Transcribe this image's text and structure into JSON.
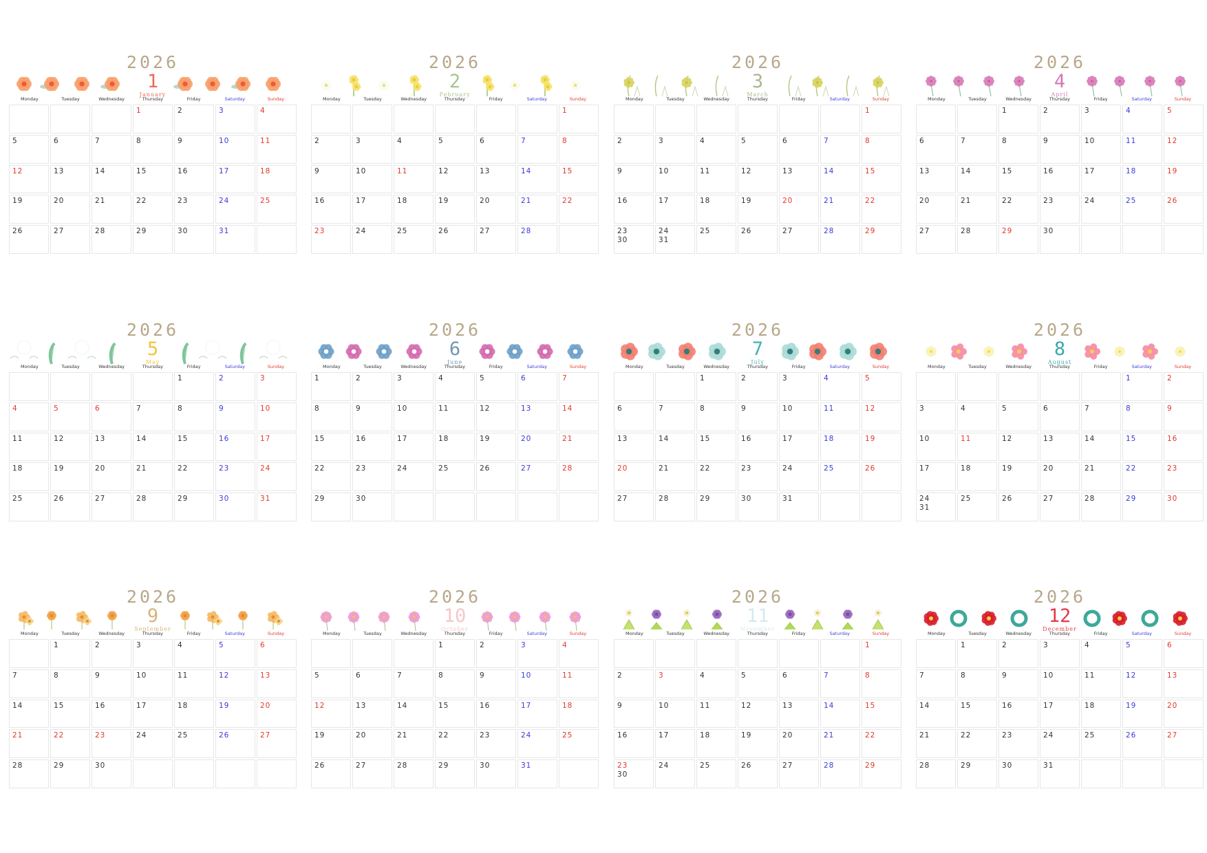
{
  "year": "2026",
  "weekdays": [
    "Monday",
    "Tuesday",
    "Wednesday",
    "Thursday",
    "Friday",
    "Saturday",
    "Sunday"
  ],
  "colors": {
    "text": "#333333",
    "saturday": "#3a3ad8",
    "holiday": "#e2382b",
    "year": "#b8a78a"
  },
  "months": [
    {
      "num": "1",
      "name": "January",
      "color": "#ef6a55",
      "flower": "poppy-flower-icon",
      "cells": [
        [],
        [],
        [],
        [
          "1"
        ],
        [
          "2"
        ],
        [
          "3"
        ],
        [
          "4"
        ],
        [
          "5"
        ],
        [
          "6"
        ],
        [
          "7"
        ],
        [
          "8"
        ],
        [
          "9"
        ],
        [
          "10"
        ],
        [
          "11"
        ],
        [
          "12"
        ],
        [
          "13"
        ],
        [
          "14"
        ],
        [
          "15"
        ],
        [
          "16"
        ],
        [
          "17"
        ],
        [
          "18"
        ],
        [
          "19"
        ],
        [
          "20"
        ],
        [
          "21"
        ],
        [
          "22"
        ],
        [
          "23"
        ],
        [
          "24"
        ],
        [
          "25"
        ],
        [
          "26"
        ],
        [
          "27"
        ],
        [
          "28"
        ],
        [
          "29"
        ],
        [
          "30"
        ],
        [
          "31"
        ],
        []
      ],
      "red": [
        "1",
        "12"
      ]
    },
    {
      "num": "2",
      "name": "February",
      "color": "#a9c48c",
      "flower": "daffodil-flower-icon",
      "cells": [
        [],
        [],
        [],
        [],
        [],
        [],
        [
          "1"
        ],
        [
          "2"
        ],
        [
          "3"
        ],
        [
          "4"
        ],
        [
          "5"
        ],
        [
          "6"
        ],
        [
          "7"
        ],
        [
          "8"
        ],
        [
          "9"
        ],
        [
          "10"
        ],
        [
          "11"
        ],
        [
          "12"
        ],
        [
          "13"
        ],
        [
          "14"
        ],
        [
          "15"
        ],
        [
          "16"
        ],
        [
          "17"
        ],
        [
          "18"
        ],
        [
          "19"
        ],
        [
          "20"
        ],
        [
          "21"
        ],
        [
          "22"
        ],
        [
          "23"
        ],
        [
          "24"
        ],
        [
          "25"
        ],
        [
          "26"
        ],
        [
          "27"
        ],
        [
          "28"
        ],
        []
      ],
      "red": [
        "11",
        "23"
      ]
    },
    {
      "num": "3",
      "name": "March",
      "color": "#a9b88e",
      "flower": "mimosa-flower-icon",
      "cells": [
        [],
        [],
        [],
        [],
        [],
        [],
        [
          "1"
        ],
        [
          "2"
        ],
        [
          "3"
        ],
        [
          "4"
        ],
        [
          "5"
        ],
        [
          "6"
        ],
        [
          "7"
        ],
        [
          "8"
        ],
        [
          "9"
        ],
        [
          "10"
        ],
        [
          "11"
        ],
        [
          "12"
        ],
        [
          "13"
        ],
        [
          "14"
        ],
        [
          "15"
        ],
        [
          "16"
        ],
        [
          "17"
        ],
        [
          "18"
        ],
        [
          "19"
        ],
        [
          "20"
        ],
        [
          "21"
        ],
        [
          "22"
        ],
        [
          "23",
          "30"
        ],
        [
          "24",
          "31"
        ],
        [
          "25"
        ],
        [
          "26"
        ],
        [
          "27"
        ],
        [
          "28"
        ],
        [
          "29"
        ]
      ],
      "red": [
        "20"
      ]
    },
    {
      "num": "4",
      "name": "April",
      "color": "#d278b4",
      "flower": "pink-thistle-flower-icon",
      "cells": [
        [],
        [],
        [
          "1"
        ],
        [
          "2"
        ],
        [
          "3"
        ],
        [
          "4"
        ],
        [
          "5"
        ],
        [
          "6"
        ],
        [
          "7"
        ],
        [
          "8"
        ],
        [
          "9"
        ],
        [
          "10"
        ],
        [
          "11"
        ],
        [
          "12"
        ],
        [
          "13"
        ],
        [
          "14"
        ],
        [
          "15"
        ],
        [
          "16"
        ],
        [
          "17"
        ],
        [
          "18"
        ],
        [
          "19"
        ],
        [
          "20"
        ],
        [
          "21"
        ],
        [
          "22"
        ],
        [
          "23"
        ],
        [
          "24"
        ],
        [
          "25"
        ],
        [
          "26"
        ],
        [
          "27"
        ],
        [
          "28"
        ],
        [
          "29"
        ],
        [
          "30"
        ],
        [],
        [],
        []
      ],
      "red": [
        "29"
      ]
    },
    {
      "num": "5",
      "name": "May",
      "color": "#f0c53a",
      "flower": "dandelion-flower-icon",
      "cells": [
        [],
        [],
        [],
        [],
        [
          "1"
        ],
        [
          "2"
        ],
        [
          "3"
        ],
        [
          "4"
        ],
        [
          "5"
        ],
        [
          "6"
        ],
        [
          "7"
        ],
        [
          "8"
        ],
        [
          "9"
        ],
        [
          "10"
        ],
        [
          "11"
        ],
        [
          "12"
        ],
        [
          "13"
        ],
        [
          "14"
        ],
        [
          "15"
        ],
        [
          "16"
        ],
        [
          "17"
        ],
        [
          "18"
        ],
        [
          "19"
        ],
        [
          "20"
        ],
        [
          "21"
        ],
        [
          "22"
        ],
        [
          "23"
        ],
        [
          "24"
        ],
        [
          "25"
        ],
        [
          "26"
        ],
        [
          "27"
        ],
        [
          "28"
        ],
        [
          "29"
        ],
        [
          "30"
        ],
        [
          "31"
        ]
      ],
      "red": [
        "4",
        "5",
        "6"
      ]
    },
    {
      "num": "6",
      "name": "June",
      "color": "#6f98b0",
      "flower": "hydrangea-flower-icon",
      "cells": [
        [
          "1"
        ],
        [
          "2"
        ],
        [
          "3"
        ],
        [
          "4"
        ],
        [
          "5"
        ],
        [
          "6"
        ],
        [
          "7"
        ],
        [
          "8"
        ],
        [
          "9"
        ],
        [
          "10"
        ],
        [
          "11"
        ],
        [
          "12"
        ],
        [
          "13"
        ],
        [
          "14"
        ],
        [
          "15"
        ],
        [
          "16"
        ],
        [
          "17"
        ],
        [
          "18"
        ],
        [
          "19"
        ],
        [
          "20"
        ],
        [
          "21"
        ],
        [
          "22"
        ],
        [
          "23"
        ],
        [
          "24"
        ],
        [
          "25"
        ],
        [
          "26"
        ],
        [
          "27"
        ],
        [
          "28"
        ],
        [
          "29"
        ],
        [
          "30"
        ],
        [],
        [],
        [],
        [],
        []
      ],
      "red": []
    },
    {
      "num": "7",
      "name": "July",
      "color": "#45b0b3",
      "flower": "morning-glory-flower-icon",
      "cells": [
        [],
        [],
        [
          "1"
        ],
        [
          "2"
        ],
        [
          "3"
        ],
        [
          "4"
        ],
        [
          "5"
        ],
        [
          "6"
        ],
        [
          "7"
        ],
        [
          "8"
        ],
        [
          "9"
        ],
        [
          "10"
        ],
        [
          "11"
        ],
        [
          "12"
        ],
        [
          "13"
        ],
        [
          "14"
        ],
        [
          "15"
        ],
        [
          "16"
        ],
        [
          "17"
        ],
        [
          "18"
        ],
        [
          "19"
        ],
        [
          "20"
        ],
        [
          "21"
        ],
        [
          "22"
        ],
        [
          "23"
        ],
        [
          "24"
        ],
        [
          "25"
        ],
        [
          "26"
        ],
        [
          "27"
        ],
        [
          "28"
        ],
        [
          "29"
        ],
        [
          "30"
        ],
        [
          "31"
        ],
        [],
        []
      ],
      "red": [
        "20"
      ]
    },
    {
      "num": "8",
      "name": "August",
      "color": "#3aa8a8",
      "flower": "star-lily-flower-icon",
      "cells": [
        [],
        [],
        [],
        [],
        [],
        [
          "1"
        ],
        [
          "2"
        ],
        [
          "3"
        ],
        [
          "4"
        ],
        [
          "5"
        ],
        [
          "6"
        ],
        [
          "7"
        ],
        [
          "8"
        ],
        [
          "9"
        ],
        [
          "10"
        ],
        [
          "11"
        ],
        [
          "12"
        ],
        [
          "13"
        ],
        [
          "14"
        ],
        [
          "15"
        ],
        [
          "16"
        ],
        [
          "17"
        ],
        [
          "18"
        ],
        [
          "19"
        ],
        [
          "20"
        ],
        [
          "21"
        ],
        [
          "22"
        ],
        [
          "23"
        ],
        [
          "24",
          "31"
        ],
        [
          "25"
        ],
        [
          "26"
        ],
        [
          "27"
        ],
        [
          "28"
        ],
        [
          "29"
        ],
        [
          "30"
        ]
      ],
      "red": [
        "11"
      ]
    },
    {
      "num": "9",
      "name": "September",
      "color": "#d9b27a",
      "flower": "marigold-flower-icon",
      "cells": [
        [],
        [
          "1"
        ],
        [
          "2"
        ],
        [
          "3"
        ],
        [
          "4"
        ],
        [
          "5"
        ],
        [
          "6"
        ],
        [
          "7"
        ],
        [
          "8"
        ],
        [
          "9"
        ],
        [
          "10"
        ],
        [
          "11"
        ],
        [
          "12"
        ],
        [
          "13"
        ],
        [
          "14"
        ],
        [
          "15"
        ],
        [
          "16"
        ],
        [
          "17"
        ],
        [
          "18"
        ],
        [
          "19"
        ],
        [
          "20"
        ],
        [
          "21"
        ],
        [
          "22"
        ],
        [
          "23"
        ],
        [
          "24"
        ],
        [
          "25"
        ],
        [
          "26"
        ],
        [
          "27"
        ],
        [
          "28"
        ],
        [
          "29"
        ],
        [
          "30"
        ],
        [],
        [],
        [],
        []
      ],
      "red": [
        "21",
        "22",
        "23"
      ]
    },
    {
      "num": "10",
      "name": "October",
      "color": "#f4c8c8",
      "flower": "cosmos-flower-icon",
      "cells": [
        [],
        [],
        [],
        [
          "1"
        ],
        [
          "2"
        ],
        [
          "3"
        ],
        [
          "4"
        ],
        [
          "5"
        ],
        [
          "6"
        ],
        [
          "7"
        ],
        [
          "8"
        ],
        [
          "9"
        ],
        [
          "10"
        ],
        [
          "11"
        ],
        [
          "12"
        ],
        [
          "13"
        ],
        [
          "14"
        ],
        [
          "15"
        ],
        [
          "16"
        ],
        [
          "17"
        ],
        [
          "18"
        ],
        [
          "19"
        ],
        [
          "20"
        ],
        [
          "21"
        ],
        [
          "22"
        ],
        [
          "23"
        ],
        [
          "24"
        ],
        [
          "25"
        ],
        [
          "26"
        ],
        [
          "27"
        ],
        [
          "28"
        ],
        [
          "29"
        ],
        [
          "30"
        ],
        [
          "31"
        ],
        []
      ],
      "red": [
        "12"
      ]
    },
    {
      "num": "11",
      "name": "November",
      "color": "#d5eaf0",
      "flower": "lupine-flower-icon",
      "cells": [
        [],
        [],
        [],
        [],
        [],
        [],
        [
          "1"
        ],
        [
          "2"
        ],
        [
          "3"
        ],
        [
          "4"
        ],
        [
          "5"
        ],
        [
          "6"
        ],
        [
          "7"
        ],
        [
          "8"
        ],
        [
          "9"
        ],
        [
          "10"
        ],
        [
          "11"
        ],
        [
          "12"
        ],
        [
          "13"
        ],
        [
          "14"
        ],
        [
          "15"
        ],
        [
          "16"
        ],
        [
          "17"
        ],
        [
          "18"
        ],
        [
          "19"
        ],
        [
          "20"
        ],
        [
          "21"
        ],
        [
          "22"
        ],
        [
          "23",
          "30"
        ],
        [
          "24"
        ],
        [
          "25"
        ],
        [
          "26"
        ],
        [
          "27"
        ],
        [
          "28"
        ],
        [
          "29"
        ]
      ],
      "red": [
        "3",
        "23"
      ]
    },
    {
      "num": "12",
      "name": "December",
      "color": "#e23b4b",
      "flower": "poinsettia-flower-icon",
      "cells": [
        [],
        [
          "1"
        ],
        [
          "2"
        ],
        [
          "3"
        ],
        [
          "4"
        ],
        [
          "5"
        ],
        [
          "6"
        ],
        [
          "7"
        ],
        [
          "8"
        ],
        [
          "9"
        ],
        [
          "10"
        ],
        [
          "11"
        ],
        [
          "12"
        ],
        [
          "13"
        ],
        [
          "14"
        ],
        [
          "15"
        ],
        [
          "16"
        ],
        [
          "17"
        ],
        [
          "18"
        ],
        [
          "19"
        ],
        [
          "20"
        ],
        [
          "21"
        ],
        [
          "22"
        ],
        [
          "23"
        ],
        [
          "24"
        ],
        [
          "25"
        ],
        [
          "26"
        ],
        [
          "27"
        ],
        [
          "28"
        ],
        [
          "29"
        ],
        [
          "30"
        ],
        [
          "31"
        ],
        [],
        [],
        []
      ],
      "red": []
    }
  ]
}
